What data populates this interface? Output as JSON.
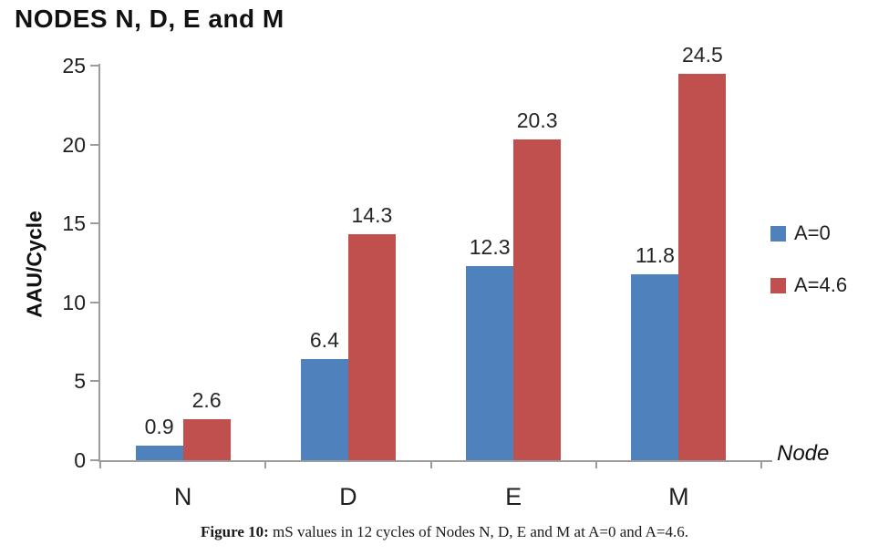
{
  "chart_data": {
    "type": "bar",
    "title": "NODES N, D, E and M",
    "categories": [
      "N",
      "D",
      "E",
      "M"
    ],
    "series": [
      {
        "name": "A=0",
        "color": "#4F81BD",
        "values": [
          0.9,
          6.4,
          12.3,
          11.8
        ]
      },
      {
        "name": "A=4.6",
        "color": "#C0504D",
        "values": [
          2.6,
          14.3,
          20.3,
          24.5
        ]
      }
    ],
    "data_labels": [
      [
        "0.9",
        "6.4",
        "12.3",
        "11.8"
      ],
      [
        "2.6",
        "14.3",
        "20.3",
        "24.5"
      ]
    ],
    "ylabel": "AAU/Cycle",
    "xlabel": "Node",
    "ylim": [
      0,
      25
    ],
    "yticks": [
      "0",
      "5",
      "10",
      "15",
      "20",
      "25"
    ],
    "grid": false,
    "legend_position": "right",
    "axis_color": "#9c9c9c"
  },
  "caption": {
    "prefix": "Figure 10:",
    "text": " mS values in 12 cycles of Nodes N, D, E and M at A=0 and A=4.6."
  }
}
